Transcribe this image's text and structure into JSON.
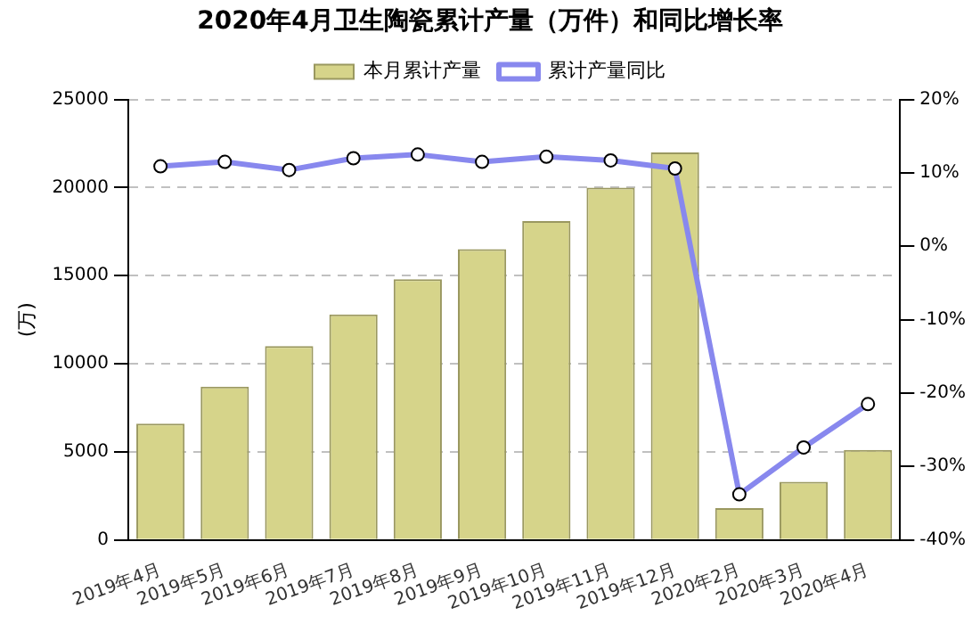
{
  "chart_data": {
    "type": "bar",
    "title": "2020年4月卫生陶瓷累计产量（万件）和同比增长率",
    "ylabel": "(万)",
    "categories": [
      "2019年4月",
      "2019年5月",
      "2019年6月",
      "2019年7月",
      "2019年8月",
      "2019年9月",
      "2019年10月",
      "2019年11月",
      "2019年12月",
      "2020年2月",
      "2020年3月",
      "2020年4月"
    ],
    "series": [
      {
        "name": "本月累计产量",
        "color": "#d6d48a",
        "values": [
          6600,
          8700,
          11000,
          12800,
          14800,
          16500,
          18100,
          20000,
          22000,
          1800,
          3300,
          5100
        ]
      },
      {
        "name": "累计产量同比",
        "type": "line",
        "axis": "y2",
        "color": "#8888ee",
        "values": [
          10.9,
          11.5,
          10.4,
          12.0,
          12.5,
          11.5,
          12.2,
          11.7,
          10.6,
          -33.8,
          -27.4,
          -21.5
        ]
      }
    ],
    "ylim": [
      0,
      25000
    ],
    "yticks": [
      0,
      5000,
      10000,
      15000,
      20000,
      25000
    ],
    "y2lim": [
      -40,
      20
    ],
    "y2ticks": [
      {
        "value": -40,
        "label": "-40%"
      },
      {
        "value": -30,
        "label": "-30%"
      },
      {
        "value": -20,
        "label": "-20%"
      },
      {
        "value": -10,
        "label": "-10%"
      },
      {
        "value": 0,
        "label": "0%"
      },
      {
        "value": 10,
        "label": "10%"
      },
      {
        "value": 20,
        "label": "20%"
      }
    ],
    "grid": "y",
    "legend": "top",
    "marker": "circle"
  }
}
